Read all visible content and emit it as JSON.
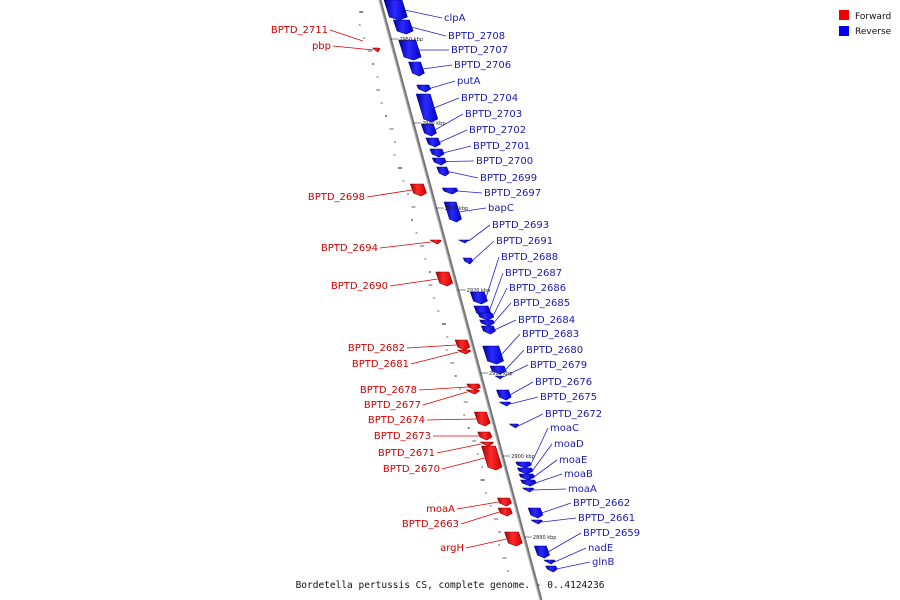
{
  "caption": "Bordetella pertussis CS, complete genome. - 0..4124236",
  "legend": [
    {
      "label": "Forward",
      "color": "#ee0000"
    },
    {
      "label": "Reverse",
      "color": "#0000ee"
    }
  ],
  "colors": {
    "forward": "#ee0000",
    "reverse": "#0000ee",
    "forward_label": "#cc0000",
    "reverse_label": "#1a1aaa",
    "backbone": "#777777"
  },
  "scale_ticks": [
    "2950 kbp",
    "2940 kbp",
    "2930 kbp",
    "2920 kbp",
    "2910 kbp",
    "2900 kbp",
    "2890 kbp"
  ],
  "forward_genes": [
    "BPTD_2711",
    "pbp",
    "BPTD_2698",
    "BPTD_2694",
    "BPTD_2690",
    "BPTD_2682",
    "BPTD_2681",
    "BPTD_2678",
    "BPTD_2677",
    "BPTD_2674",
    "BPTD_2673",
    "BPTD_2671",
    "BPTD_2670",
    "moaA",
    "BPTD_2663",
    "argH"
  ],
  "reverse_genes": [
    "clpA",
    "BPTD_2708",
    "BPTD_2707",
    "BPTD_2706",
    "putA",
    "BPTD_2704",
    "BPTD_2703",
    "BPTD_2702",
    "BPTD_2701",
    "BPTD_2700",
    "BPTD_2699",
    "BPTD_2697",
    "bapC",
    "BPTD_2693",
    "BPTD_2691",
    "BPTD_2688",
    "BPTD_2687",
    "BPTD_2686",
    "BPTD_2685",
    "BPTD_2684",
    "BPTD_2683",
    "BPTD_2680",
    "BPTD_2679",
    "BPTD_2676",
    "BPTD_2675",
    "BPTD_2672",
    "moaC",
    "moaD",
    "moaE",
    "moaB",
    "moaA",
    "BPTD_2662",
    "BPTD_2661",
    "BPTD_2659",
    "nadE",
    "glnB"
  ]
}
